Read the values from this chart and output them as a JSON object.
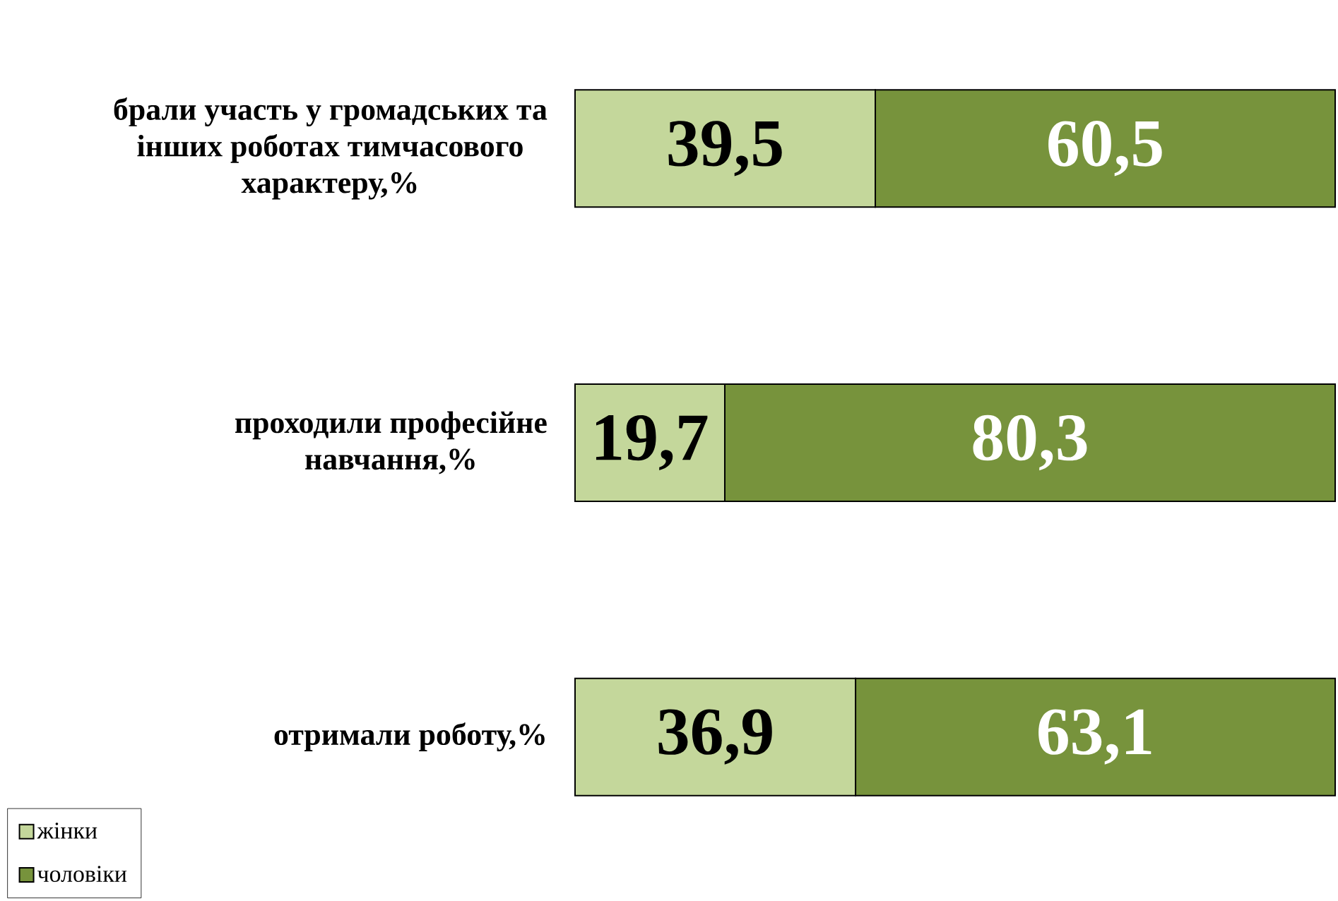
{
  "chart_data": {
    "type": "bar",
    "orientation": "horizontal",
    "stacked": true,
    "categories": [
      "брали участь у громадських та інших роботах тимчасового характеру,%",
      "проходили професійне навчання,%",
      "отримали роботу,%"
    ],
    "series": [
      {
        "name": "жінки",
        "color": "#c4d79b",
        "values": [
          39.5,
          19.7,
          36.9
        ],
        "value_labels": [
          "39,5",
          "19,7",
          "36,9"
        ]
      },
      {
        "name": "чоловіки",
        "color": "#77933c",
        "values": [
          60.5,
          80.3,
          63.1
        ],
        "value_labels": [
          "60,5",
          "80,3",
          "63,1"
        ]
      }
    ],
    "legend": "bottom left",
    "tick_labels": "y"
  }
}
